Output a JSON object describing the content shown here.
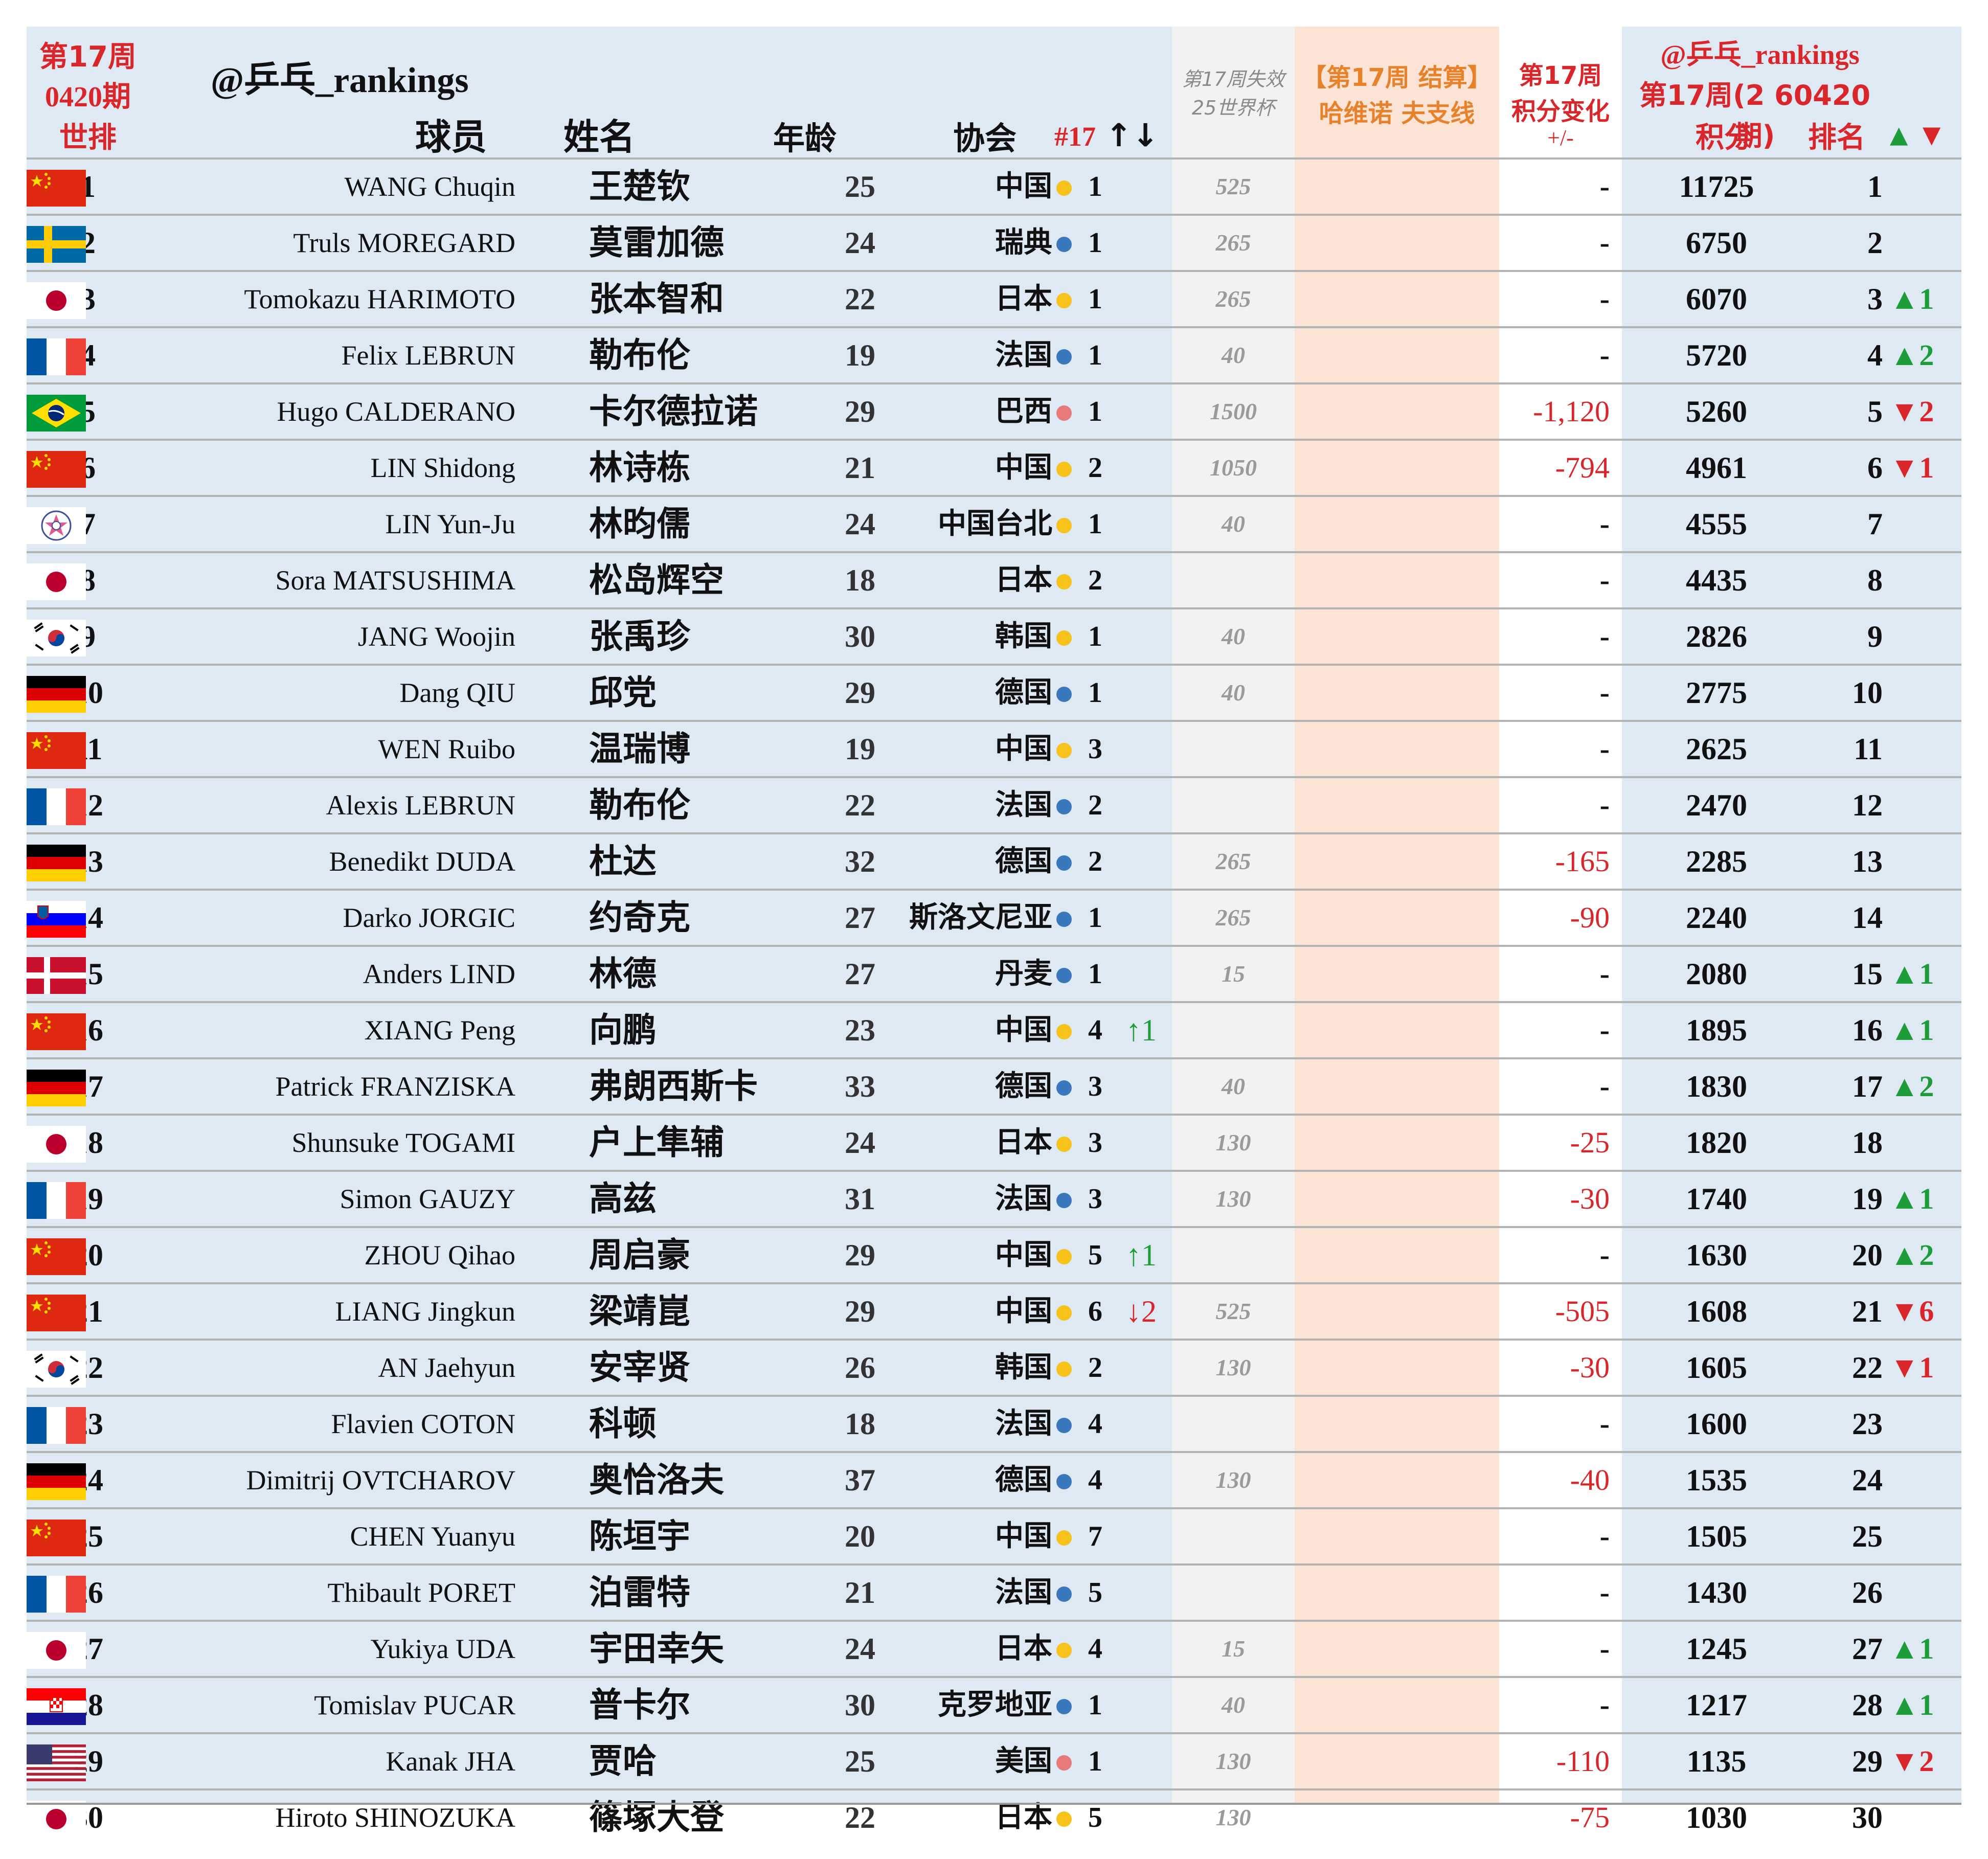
{
  "header": {
    "week_label_1": "第17周",
    "week_label_2": "0420期",
    "week_label_3": "世排",
    "brand": "@乒乓_rankings",
    "col_player": "球员",
    "col_name": "姓名",
    "col_age": "年龄",
    "col_assoc": "协会",
    "col_nat_rank": "#17",
    "col_nat_arrows": "↑↓",
    "col_lost_1": "第17周失效",
    "col_lost_2": "25世界杯",
    "col_settle_1": "【第17周 结算】",
    "col_settle_2": "哈维诺 夫支线",
    "col_chg_1": "第17周",
    "col_chg_2": "积分变化",
    "col_chg_3": "+/-",
    "right_brand": "@乒乓_rankings",
    "right_week": "第17周(2 60420期)",
    "col_points": "积分",
    "col_rank": "排名",
    "col_move_up": "▲",
    "col_move_down": "▼"
  },
  "colors": {
    "china_gold": "#f7c21a",
    "europe_blue": "#3a78bd",
    "americas_pink": "#e87a7a",
    "up_green": "#1e9c3a",
    "down_red": "#d9262a"
  },
  "rows": [
    {
      "rank": "1",
      "en": "WANG Chuqin",
      "flag": "china",
      "cn": "王楚钦",
      "age": "25",
      "assoc": "中国",
      "dot": "gold",
      "nat": "1",
      "natarr": "",
      "natdir": "",
      "lost": "525",
      "chg": "-",
      "pts": "11725",
      "nr": "1",
      "mv": "",
      "mvdir": ""
    },
    {
      "rank": "2",
      "en": "Truls MOREGARD",
      "flag": "sweden",
      "cn": "莫雷加德",
      "age": "24",
      "assoc": "瑞典",
      "dot": "blue",
      "nat": "1",
      "natarr": "",
      "natdir": "",
      "lost": "265",
      "chg": "-",
      "pts": "6750",
      "nr": "2",
      "mv": "",
      "mvdir": ""
    },
    {
      "rank": "3",
      "en": "Tomokazu HARIMOTO",
      "flag": "japan",
      "cn": "张本智和",
      "age": "22",
      "assoc": "日本",
      "dot": "gold",
      "nat": "1",
      "natarr": "",
      "natdir": "",
      "lost": "265",
      "chg": "-",
      "pts": "6070",
      "nr": "3",
      "mv": "▲1",
      "mvdir": "up"
    },
    {
      "rank": "4",
      "en": "Felix LEBRUN",
      "flag": "france",
      "cn": "勒布伦",
      "age": "19",
      "assoc": "法国",
      "dot": "blue",
      "nat": "1",
      "natarr": "",
      "natdir": "",
      "lost": "40",
      "chg": "-",
      "pts": "5720",
      "nr": "4",
      "mv": "▲2",
      "mvdir": "up"
    },
    {
      "rank": "5",
      "en": "Hugo CALDERANO",
      "flag": "brazil",
      "cn": "卡尔德拉诺",
      "age": "29",
      "assoc": "巴西",
      "dot": "pink",
      "nat": "1",
      "natarr": "",
      "natdir": "",
      "lost": "1500",
      "chg": "-1,120",
      "pts": "5260",
      "nr": "5",
      "mv": "▼2",
      "mvdir": "down"
    },
    {
      "rank": "6",
      "en": "LIN Shidong",
      "flag": "china",
      "cn": "林诗栋",
      "age": "21",
      "assoc": "中国",
      "dot": "gold",
      "nat": "2",
      "natarr": "",
      "natdir": "",
      "lost": "1050",
      "chg": "-794",
      "pts": "4961",
      "nr": "6",
      "mv": "▼1",
      "mvdir": "down"
    },
    {
      "rank": "7",
      "en": "LIN Yun-Ju",
      "flag": "tpe",
      "cn": "林昀儒",
      "age": "24",
      "assoc": "中国台北",
      "dot": "gold",
      "nat": "1",
      "natarr": "",
      "natdir": "",
      "lost": "40",
      "chg": "-",
      "pts": "4555",
      "nr": "7",
      "mv": "",
      "mvdir": ""
    },
    {
      "rank": "8",
      "en": "Sora MATSUSHIMA",
      "flag": "japan",
      "cn": "松岛辉空",
      "age": "18",
      "assoc": "日本",
      "dot": "gold",
      "nat": "2",
      "natarr": "",
      "natdir": "",
      "lost": "",
      "chg": "-",
      "pts": "4435",
      "nr": "8",
      "mv": "",
      "mvdir": ""
    },
    {
      "rank": "9",
      "en": "JANG Woojin",
      "flag": "korea",
      "cn": "张禹珍",
      "age": "30",
      "assoc": "韩国",
      "dot": "gold",
      "nat": "1",
      "natarr": "",
      "natdir": "",
      "lost": "40",
      "chg": "-",
      "pts": "2826",
      "nr": "9",
      "mv": "",
      "mvdir": ""
    },
    {
      "rank": "10",
      "en": "Dang QIU",
      "flag": "germany",
      "cn": "邱党",
      "age": "29",
      "assoc": "德国",
      "dot": "blue",
      "nat": "1",
      "natarr": "",
      "natdir": "",
      "lost": "40",
      "chg": "-",
      "pts": "2775",
      "nr": "10",
      "mv": "",
      "mvdir": ""
    },
    {
      "rank": "11",
      "en": "WEN Ruibo",
      "flag": "china",
      "cn": "温瑞博",
      "age": "19",
      "assoc": "中国",
      "dot": "gold",
      "nat": "3",
      "natarr": "",
      "natdir": "",
      "lost": "",
      "chg": "-",
      "pts": "2625",
      "nr": "11",
      "mv": "",
      "mvdir": ""
    },
    {
      "rank": "12",
      "en": "Alexis LEBRUN",
      "flag": "france",
      "cn": "勒布伦",
      "age": "22",
      "assoc": "法国",
      "dot": "blue",
      "nat": "2",
      "natarr": "",
      "natdir": "",
      "lost": "",
      "chg": "-",
      "pts": "2470",
      "nr": "12",
      "mv": "",
      "mvdir": ""
    },
    {
      "rank": "13",
      "en": "Benedikt DUDA",
      "flag": "germany",
      "cn": "杜达",
      "age": "32",
      "assoc": "德国",
      "dot": "blue",
      "nat": "2",
      "natarr": "",
      "natdir": "",
      "lost": "265",
      "chg": "-165",
      "pts": "2285",
      "nr": "13",
      "mv": "",
      "mvdir": ""
    },
    {
      "rank": "14",
      "en": "Darko JORGIC",
      "flag": "slovenia",
      "cn": "约奇克",
      "age": "27",
      "assoc": "斯洛文尼亚",
      "dot": "blue",
      "nat": "1",
      "natarr": "",
      "natdir": "",
      "lost": "265",
      "chg": "-90",
      "pts": "2240",
      "nr": "14",
      "mv": "",
      "mvdir": ""
    },
    {
      "rank": "15",
      "en": "Anders LIND",
      "flag": "denmark",
      "cn": "林德",
      "age": "27",
      "assoc": "丹麦",
      "dot": "blue",
      "nat": "1",
      "natarr": "",
      "natdir": "",
      "lost": "15",
      "chg": "-",
      "pts": "2080",
      "nr": "15",
      "mv": "▲1",
      "mvdir": "up"
    },
    {
      "rank": "16",
      "en": "XIANG Peng",
      "flag": "china",
      "cn": "向鹏",
      "age": "23",
      "assoc": "中国",
      "dot": "gold",
      "nat": "4",
      "natarr": "↑1",
      "natdir": "up",
      "lost": "",
      "chg": "-",
      "pts": "1895",
      "nr": "16",
      "mv": "▲1",
      "mvdir": "up"
    },
    {
      "rank": "17",
      "en": "Patrick FRANZISKA",
      "flag": "germany",
      "cn": "弗朗西斯卡",
      "age": "33",
      "assoc": "德国",
      "dot": "blue",
      "nat": "3",
      "natarr": "",
      "natdir": "",
      "lost": "40",
      "chg": "-",
      "pts": "1830",
      "nr": "17",
      "mv": "▲2",
      "mvdir": "up"
    },
    {
      "rank": "18",
      "en": "Shunsuke TOGAMI",
      "flag": "japan",
      "cn": "户上隼辅",
      "age": "24",
      "assoc": "日本",
      "dot": "gold",
      "nat": "3",
      "natarr": "",
      "natdir": "",
      "lost": "130",
      "chg": "-25",
      "pts": "1820",
      "nr": "18",
      "mv": "",
      "mvdir": ""
    },
    {
      "rank": "19",
      "en": "Simon GAUZY",
      "flag": "france",
      "cn": "高兹",
      "age": "31",
      "assoc": "法国",
      "dot": "blue",
      "nat": "3",
      "natarr": "",
      "natdir": "",
      "lost": "130",
      "chg": "-30",
      "pts": "1740",
      "nr": "19",
      "mv": "▲1",
      "mvdir": "up"
    },
    {
      "rank": "20",
      "en": "ZHOU Qihao",
      "flag": "china",
      "cn": "周启豪",
      "age": "29",
      "assoc": "中国",
      "dot": "gold",
      "nat": "5",
      "natarr": "↑1",
      "natdir": "up",
      "lost": "",
      "chg": "-",
      "pts": "1630",
      "nr": "20",
      "mv": "▲2",
      "mvdir": "up"
    },
    {
      "rank": "21",
      "en": "LIANG Jingkun",
      "flag": "china",
      "cn": "梁靖崑",
      "age": "29",
      "assoc": "中国",
      "dot": "gold",
      "nat": "6",
      "natarr": "↓2",
      "natdir": "down",
      "lost": "525",
      "chg": "-505",
      "pts": "1608",
      "nr": "21",
      "mv": "▼6",
      "mvdir": "down"
    },
    {
      "rank": "22",
      "en": "AN Jaehyun",
      "flag": "korea",
      "cn": "安宰贤",
      "age": "26",
      "assoc": "韩国",
      "dot": "gold",
      "nat": "2",
      "natarr": "",
      "natdir": "",
      "lost": "130",
      "chg": "-30",
      "pts": "1605",
      "nr": "22",
      "mv": "▼1",
      "mvdir": "down"
    },
    {
      "rank": "23",
      "en": "Flavien COTON",
      "flag": "france",
      "cn": "科顿",
      "age": "18",
      "assoc": "法国",
      "dot": "blue",
      "nat": "4",
      "natarr": "",
      "natdir": "",
      "lost": "",
      "chg": "-",
      "pts": "1600",
      "nr": "23",
      "mv": "",
      "mvdir": ""
    },
    {
      "rank": "24",
      "en": "Dimitrij OVTCHAROV",
      "flag": "germany",
      "cn": "奥恰洛夫",
      "age": "37",
      "assoc": "德国",
      "dot": "blue",
      "nat": "4",
      "natarr": "",
      "natdir": "",
      "lost": "130",
      "chg": "-40",
      "pts": "1535",
      "nr": "24",
      "mv": "",
      "mvdir": ""
    },
    {
      "rank": "25",
      "en": "CHEN Yuanyu",
      "flag": "china",
      "cn": "陈垣宇",
      "age": "20",
      "assoc": "中国",
      "dot": "gold",
      "nat": "7",
      "natarr": "",
      "natdir": "",
      "lost": "",
      "chg": "-",
      "pts": "1505",
      "nr": "25",
      "mv": "",
      "mvdir": ""
    },
    {
      "rank": "26",
      "en": "Thibault PORET",
      "flag": "france",
      "cn": "泊雷特",
      "age": "21",
      "assoc": "法国",
      "dot": "blue",
      "nat": "5",
      "natarr": "",
      "natdir": "",
      "lost": "",
      "chg": "-",
      "pts": "1430",
      "nr": "26",
      "mv": "",
      "mvdir": ""
    },
    {
      "rank": "27",
      "en": "Yukiya UDA",
      "flag": "japan",
      "cn": "宇田幸矢",
      "age": "24",
      "assoc": "日本",
      "dot": "gold",
      "nat": "4",
      "natarr": "",
      "natdir": "",
      "lost": "15",
      "chg": "-",
      "pts": "1245",
      "nr": "27",
      "mv": "▲1",
      "mvdir": "up"
    },
    {
      "rank": "28",
      "en": "Tomislav PUCAR",
      "flag": "croatia",
      "cn": "普卡尔",
      "age": "30",
      "assoc": "克罗地亚",
      "dot": "blue",
      "nat": "1",
      "natarr": "",
      "natdir": "",
      "lost": "40",
      "chg": "-",
      "pts": "1217",
      "nr": "28",
      "mv": "▲1",
      "mvdir": "up"
    },
    {
      "rank": "29",
      "en": "Kanak JHA",
      "flag": "usa",
      "cn": "贾哈",
      "age": "25",
      "assoc": "美国",
      "dot": "pink",
      "nat": "1",
      "natarr": "",
      "natdir": "",
      "lost": "130",
      "chg": "-110",
      "pts": "1135",
      "nr": "29",
      "mv": "▼2",
      "mvdir": "down"
    },
    {
      "rank": "30",
      "en": "Hiroto SHINOZUKA",
      "flag": "japan",
      "cn": "篠塚大登",
      "age": "22",
      "assoc": "日本",
      "dot": "gold",
      "nat": "5",
      "natarr": "",
      "natdir": "",
      "lost": "130",
      "chg": "-75",
      "pts": "1030",
      "nr": "30",
      "mv": "",
      "mvdir": ""
    }
  ]
}
